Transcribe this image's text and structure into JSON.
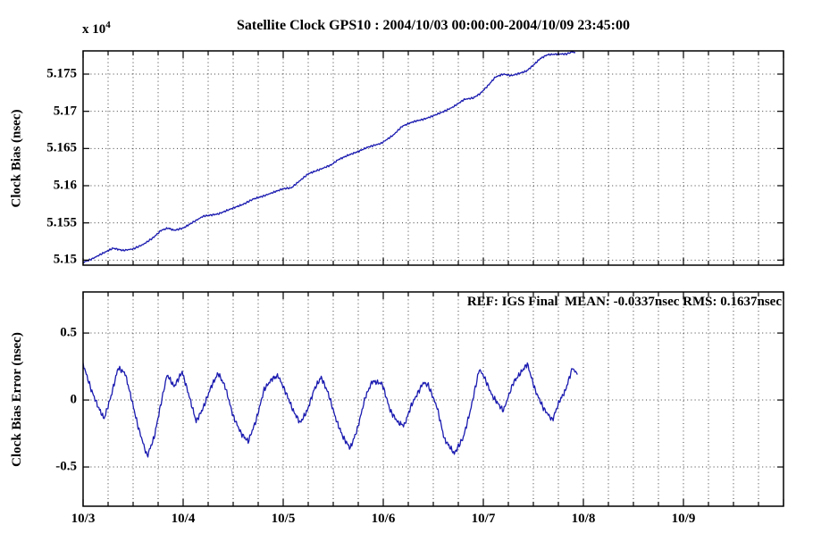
{
  "figure": {
    "title": "Satellite Clock GPS10 : 2004/10/03 00:00:00-2004/10/09 23:45:00",
    "background": "#ffffff",
    "line_color": "#1a1ab0",
    "grid_color": "#3c3c3c",
    "axis_color": "#000000",
    "text_color": "#000000"
  },
  "chart_data": [
    {
      "type": "line",
      "title": "Satellite Clock GPS10 : 2004/10/03 00:00:00-2004/10/09 23:45:00",
      "ylabel": "Clock Bias (nsec)",
      "y_multiplier": "x 10",
      "y_multiplier_exponent": "4",
      "xlabel": "",
      "xlim_days": [
        0,
        7
      ],
      "ylim": [
        5.14932,
        5.17812
      ],
      "yticks": [
        5.15,
        5.155,
        5.16,
        5.165,
        5.17,
        5.175
      ],
      "ytick_labels": [
        "5.15",
        "5.155",
        "5.16",
        "5.165",
        "5.17",
        "5.175"
      ],
      "xtick_labels": [
        {
          "pos": 0,
          "label": "10/3"
        },
        {
          "pos": 1,
          "label": "10/4"
        },
        {
          "pos": 2,
          "label": "10/5"
        },
        {
          "pos": 3,
          "label": "10/6"
        },
        {
          "pos": 4,
          "label": "10/7"
        },
        {
          "pos": 5,
          "label": "10/8"
        },
        {
          "pos": 6,
          "label": "10/9"
        }
      ],
      "show_xtick_labels": false,
      "x_minor_tick_days": 0.25,
      "grid": true,
      "legend": null,
      "noise_amplitude": 0.00013,
      "series": [
        {
          "name": "clock-bias",
          "units": "nsec x 10^4",
          "points": [
            [
              0.0,
              5.1497
            ],
            [
              0.08,
              5.1501
            ],
            [
              0.18,
              5.1508
            ],
            [
              0.3,
              5.1516
            ],
            [
              0.4,
              5.1513
            ],
            [
              0.5,
              5.1515
            ],
            [
              0.6,
              5.1521
            ],
            [
              0.7,
              5.153
            ],
            [
              0.78,
              5.154
            ],
            [
              0.85,
              5.1543
            ],
            [
              0.91,
              5.154
            ],
            [
              1.0,
              5.1543
            ],
            [
              1.1,
              5.1551
            ],
            [
              1.2,
              5.1559
            ],
            [
              1.35,
              5.1562
            ],
            [
              1.5,
              5.157
            ],
            [
              1.6,
              5.1575
            ],
            [
              1.7,
              5.1582
            ],
            [
              1.8,
              5.1586
            ],
            [
              1.9,
              5.1591
            ],
            [
              2.0,
              5.1596
            ],
            [
              2.08,
              5.1597
            ],
            [
              2.16,
              5.1606
            ],
            [
              2.25,
              5.1616
            ],
            [
              2.35,
              5.1621
            ],
            [
              2.48,
              5.1628
            ],
            [
              2.55,
              5.1635
            ],
            [
              2.65,
              5.1641
            ],
            [
              2.75,
              5.1646
            ],
            [
              2.85,
              5.1652
            ],
            [
              2.98,
              5.1657
            ],
            [
              3.1,
              5.1668
            ],
            [
              3.19,
              5.168
            ],
            [
              3.3,
              5.1686
            ],
            [
              3.42,
              5.169
            ],
            [
              3.5,
              5.1694
            ],
            [
              3.61,
              5.17
            ],
            [
              3.7,
              5.1706
            ],
            [
              3.81,
              5.1716
            ],
            [
              3.9,
              5.1718
            ],
            [
              3.97,
              5.1724
            ],
            [
              4.05,
              5.1735
            ],
            [
              4.12,
              5.1746
            ],
            [
              4.2,
              5.175
            ],
            [
              4.28,
              5.1748
            ],
            [
              4.36,
              5.1751
            ],
            [
              4.43,
              5.1754
            ],
            [
              4.5,
              5.1762
            ],
            [
              4.57,
              5.1771
            ],
            [
              4.64,
              5.1776
            ],
            [
              4.75,
              5.1777
            ],
            [
              4.83,
              5.1777
            ],
            [
              4.89,
              5.178
            ],
            [
              4.92,
              5.1779
            ]
          ]
        }
      ]
    },
    {
      "type": "line",
      "ylabel": "Clock Bias Error (nsec)",
      "annotation": "REF: IGS Final  MEAN: -0.0337nsec RMS: 0.1637nsec",
      "ref": "IGS Final",
      "mean_nsec": -0.0337,
      "rms_nsec": 0.1637,
      "xlabel": "",
      "xlim_days": [
        0,
        7
      ],
      "ylim": [
        -0.793,
        0.807
      ],
      "yticks": [
        -0.5,
        0,
        0.5
      ],
      "ytick_labels": [
        "-0.5",
        "0",
        "0.5"
      ],
      "xtick_labels": [
        {
          "pos": 0,
          "label": "10/3"
        },
        {
          "pos": 1,
          "label": "10/4"
        },
        {
          "pos": 2,
          "label": "10/5"
        },
        {
          "pos": 3,
          "label": "10/6"
        },
        {
          "pos": 4,
          "label": "10/7"
        },
        {
          "pos": 5,
          "label": "10/8"
        },
        {
          "pos": 6,
          "label": "10/9"
        }
      ],
      "show_xtick_labels": true,
      "x_minor_tick_days": 0.25,
      "grid": true,
      "legend": null,
      "noise_amplitude": 0.022,
      "series": [
        {
          "name": "clock-bias-error",
          "units": "nsec",
          "points": [
            [
              0.0,
              0.27
            ],
            [
              0.08,
              0.08
            ],
            [
              0.15,
              -0.05
            ],
            [
              0.21,
              -0.14
            ],
            [
              0.28,
              0.03
            ],
            [
              0.35,
              0.24
            ],
            [
              0.42,
              0.2
            ],
            [
              0.48,
              0.02
            ],
            [
              0.55,
              -0.2
            ],
            [
              0.64,
              -0.42
            ],
            [
              0.71,
              -0.28
            ],
            [
              0.78,
              -0.02
            ],
            [
              0.84,
              0.19
            ],
            [
              0.91,
              0.1
            ],
            [
              0.99,
              0.21
            ],
            [
              1.06,
              0.03
            ],
            [
              1.13,
              -0.16
            ],
            [
              1.2,
              -0.06
            ],
            [
              1.28,
              0.1
            ],
            [
              1.35,
              0.2
            ],
            [
              1.42,
              0.1
            ],
            [
              1.5,
              -0.12
            ],
            [
              1.58,
              -0.25
            ],
            [
              1.65,
              -0.31
            ],
            [
              1.73,
              -0.15
            ],
            [
              1.81,
              0.08
            ],
            [
              1.89,
              0.16
            ],
            [
              1.95,
              0.18
            ],
            [
              2.03,
              0.05
            ],
            [
              2.1,
              -0.08
            ],
            [
              2.17,
              -0.17
            ],
            [
              2.24,
              -0.08
            ],
            [
              2.31,
              0.08
            ],
            [
              2.38,
              0.17
            ],
            [
              2.45,
              0.05
            ],
            [
              2.53,
              -0.15
            ],
            [
              2.6,
              -0.28
            ],
            [
              2.67,
              -0.36
            ],
            [
              2.74,
              -0.22
            ],
            [
              2.82,
              0.02
            ],
            [
              2.89,
              0.14
            ],
            [
              2.95,
              0.13
            ],
            [
              2.99,
              0.12
            ],
            [
              3.07,
              -0.08
            ],
            [
              3.15,
              -0.17
            ],
            [
              3.21,
              -0.19
            ],
            [
              3.28,
              -0.04
            ],
            [
              3.4,
              0.13
            ],
            [
              3.45,
              0.11
            ],
            [
              3.54,
              -0.06
            ],
            [
              3.61,
              -0.29
            ],
            [
              3.71,
              -0.4
            ],
            [
              3.8,
              -0.28
            ],
            [
              3.87,
              -0.08
            ],
            [
              3.96,
              0.23
            ],
            [
              4.01,
              0.17
            ],
            [
              4.09,
              0.03
            ],
            [
              4.2,
              -0.08
            ],
            [
              4.3,
              0.13
            ],
            [
              4.44,
              0.27
            ],
            [
              4.52,
              0.07
            ],
            [
              4.6,
              -0.06
            ],
            [
              4.69,
              -0.15
            ],
            [
              4.76,
              -0.01
            ],
            [
              4.82,
              0.07
            ],
            [
              4.89,
              0.24
            ],
            [
              4.94,
              0.19
            ]
          ]
        }
      ]
    }
  ]
}
